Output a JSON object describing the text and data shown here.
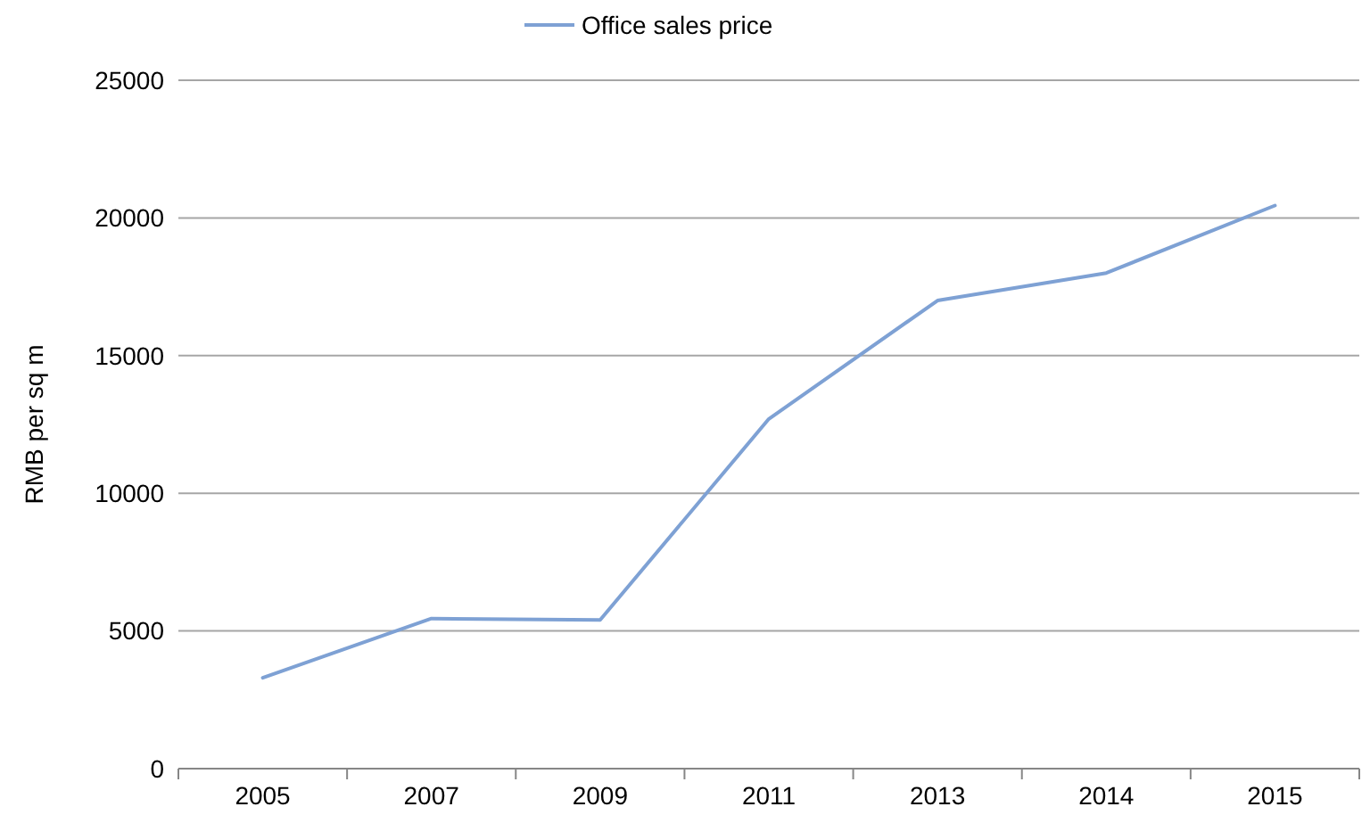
{
  "chart_data": {
    "type": "line",
    "ylabel": "RMB per sq m",
    "categories": [
      "2005",
      "2007",
      "2009",
      "2011",
      "2013",
      "2014",
      "2015"
    ],
    "series": [
      {
        "name": "Office sales price",
        "color": "#7ea1d4",
        "values": [
          3300,
          5450,
          5400,
          12700,
          17000,
          18000,
          20450
        ]
      }
    ],
    "ylim": [
      0,
      25000
    ],
    "yticks": [
      0,
      5000,
      10000,
      15000,
      20000,
      25000
    ],
    "grid": "y",
    "legend": "top",
    "marker": "none",
    "line_style": "solid"
  }
}
